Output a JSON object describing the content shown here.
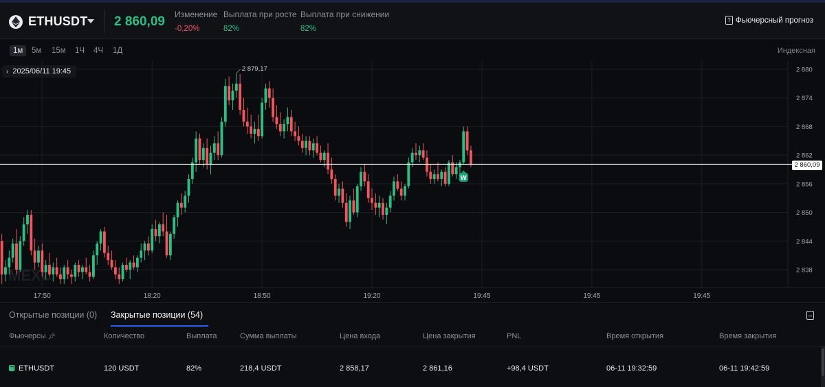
{
  "header": {
    "symbol": "ETHUSDT",
    "price": "2 860,09",
    "change_label": "Изменение",
    "change_value": "-0,20%",
    "payout_up_label": "Выплата при росте",
    "payout_up_value": "82%",
    "payout_down_label": "Выплата при снижении",
    "payout_down_value": "82%",
    "forecast_label": "Фьючерсный прогноз"
  },
  "timeframes": [
    "1м",
    "5м",
    "15м",
    "1Ч",
    "4Ч",
    "1Д"
  ],
  "active_timeframe": "1м",
  "indexed_label": "Индексная",
  "chart": {
    "date_label": "2025/06/11 19:45",
    "high_label": "2 879,17",
    "current_price_label": "2 860,09",
    "marker_label": "W",
    "watermark": "MEXC",
    "colors": {
      "up": "#2ebd85",
      "down": "#f0565d",
      "bg": "#0b0c0f",
      "grid": "#1c1e24"
    }
  },
  "chart_data": {
    "type": "candlestick",
    "ylim": [
      2834,
      2882
    ],
    "y_ticks": [
      2880,
      2874,
      2868,
      2862,
      2856,
      2850,
      2844,
      2838
    ],
    "y_tick_labels": [
      "2 880",
      "2 874",
      "2 868",
      "2 862",
      "2 856",
      "2 850",
      "2 844",
      "2 838"
    ],
    "x_ticks": [
      {
        "label": "17:50",
        "i": 11
      },
      {
        "label": "18:20",
        "i": 41
      },
      {
        "label": "18:50",
        "i": 71
      },
      {
        "label": "19:20",
        "i": 101
      },
      {
        "label": "19:45",
        "i": 131
      },
      {
        "label": "19:45",
        "i": 161
      },
      {
        "label": "19:45",
        "i": 191
      }
    ],
    "x_slots": 215,
    "current_price": 2860.09,
    "candles": [
      {
        "o": 2844.0,
        "h": 2845.5,
        "l": 2835.0,
        "c": 2837.0
      },
      {
        "o": 2837.0,
        "h": 2840.0,
        "l": 2835.5,
        "c": 2838.5
      },
      {
        "o": 2838.5,
        "h": 2842.0,
        "l": 2837.0,
        "c": 2840.5
      },
      {
        "o": 2840.5,
        "h": 2844.5,
        "l": 2839.5,
        "c": 2843.5
      },
      {
        "o": 2843.5,
        "h": 2846.5,
        "l": 2837.0,
        "c": 2838.0
      },
      {
        "o": 2838.0,
        "h": 2845.0,
        "l": 2837.5,
        "c": 2844.0
      },
      {
        "o": 2844.0,
        "h": 2849.0,
        "l": 2843.0,
        "c": 2847.5
      },
      {
        "o": 2847.5,
        "h": 2850.5,
        "l": 2845.5,
        "c": 2849.5
      },
      {
        "o": 2849.5,
        "h": 2850.5,
        "l": 2841.0,
        "c": 2842.0
      },
      {
        "o": 2842.0,
        "h": 2844.5,
        "l": 2838.0,
        "c": 2839.5
      },
      {
        "o": 2839.5,
        "h": 2843.0,
        "l": 2838.5,
        "c": 2842.0
      },
      {
        "o": 2842.0,
        "h": 2843.5,
        "l": 2836.5,
        "c": 2837.5
      },
      {
        "o": 2837.5,
        "h": 2840.0,
        "l": 2836.0,
        "c": 2839.0
      },
      {
        "o": 2839.0,
        "h": 2841.5,
        "l": 2836.5,
        "c": 2837.0
      },
      {
        "o": 2837.0,
        "h": 2839.5,
        "l": 2835.5,
        "c": 2838.5
      },
      {
        "o": 2838.5,
        "h": 2840.5,
        "l": 2836.5,
        "c": 2837.0
      },
      {
        "o": 2837.0,
        "h": 2838.5,
        "l": 2835.0,
        "c": 2836.0
      },
      {
        "o": 2836.0,
        "h": 2839.0,
        "l": 2835.0,
        "c": 2838.5
      },
      {
        "o": 2838.5,
        "h": 2840.0,
        "l": 2836.0,
        "c": 2837.0
      },
      {
        "o": 2837.0,
        "h": 2838.0,
        "l": 2835.0,
        "c": 2836.5
      },
      {
        "o": 2836.5,
        "h": 2839.5,
        "l": 2835.5,
        "c": 2839.0
      },
      {
        "o": 2839.0,
        "h": 2840.0,
        "l": 2836.5,
        "c": 2837.5
      },
      {
        "o": 2837.5,
        "h": 2839.0,
        "l": 2836.0,
        "c": 2838.5
      },
      {
        "o": 2838.5,
        "h": 2840.5,
        "l": 2837.0,
        "c": 2837.5
      },
      {
        "o": 2837.5,
        "h": 2839.0,
        "l": 2835.5,
        "c": 2836.5
      },
      {
        "o": 2836.5,
        "h": 2842.0,
        "l": 2836.0,
        "c": 2841.0
      },
      {
        "o": 2841.0,
        "h": 2844.0,
        "l": 2839.0,
        "c": 2843.5
      },
      {
        "o": 2843.5,
        "h": 2846.5,
        "l": 2842.0,
        "c": 2846.0
      },
      {
        "o": 2846.0,
        "h": 2847.0,
        "l": 2840.5,
        "c": 2841.5
      },
      {
        "o": 2841.5,
        "h": 2843.0,
        "l": 2839.0,
        "c": 2840.0
      },
      {
        "o": 2840.0,
        "h": 2842.0,
        "l": 2838.0,
        "c": 2838.5
      },
      {
        "o": 2838.5,
        "h": 2840.0,
        "l": 2836.0,
        "c": 2837.0
      },
      {
        "o": 2837.0,
        "h": 2838.5,
        "l": 2835.0,
        "c": 2836.0
      },
      {
        "o": 2836.0,
        "h": 2839.5,
        "l": 2835.5,
        "c": 2839.0
      },
      {
        "o": 2839.0,
        "h": 2840.5,
        "l": 2837.5,
        "c": 2838.0
      },
      {
        "o": 2838.0,
        "h": 2840.0,
        "l": 2836.0,
        "c": 2839.5
      },
      {
        "o": 2839.5,
        "h": 2841.0,
        "l": 2838.0,
        "c": 2838.5
      },
      {
        "o": 2838.5,
        "h": 2841.0,
        "l": 2837.5,
        "c": 2840.5
      },
      {
        "o": 2840.5,
        "h": 2843.5,
        "l": 2839.5,
        "c": 2842.0
      },
      {
        "o": 2842.0,
        "h": 2844.0,
        "l": 2840.0,
        "c": 2843.5
      },
      {
        "o": 2843.5,
        "h": 2845.0,
        "l": 2841.0,
        "c": 2842.0
      },
      {
        "o": 2842.0,
        "h": 2847.5,
        "l": 2841.5,
        "c": 2846.5
      },
      {
        "o": 2846.5,
        "h": 2848.5,
        "l": 2844.0,
        "c": 2845.0
      },
      {
        "o": 2845.0,
        "h": 2848.0,
        "l": 2843.5,
        "c": 2847.5
      },
      {
        "o": 2847.5,
        "h": 2850.0,
        "l": 2845.0,
        "c": 2846.0
      },
      {
        "o": 2846.0,
        "h": 2849.5,
        "l": 2840.5,
        "c": 2841.0
      },
      {
        "o": 2841.0,
        "h": 2846.0,
        "l": 2840.0,
        "c": 2845.5
      },
      {
        "o": 2845.5,
        "h": 2849.5,
        "l": 2844.5,
        "c": 2849.0
      },
      {
        "o": 2849.0,
        "h": 2852.5,
        "l": 2847.0,
        "c": 2852.0
      },
      {
        "o": 2852.0,
        "h": 2854.0,
        "l": 2849.5,
        "c": 2851.0
      },
      {
        "o": 2851.0,
        "h": 2854.5,
        "l": 2850.0,
        "c": 2853.5
      },
      {
        "o": 2853.5,
        "h": 2858.0,
        "l": 2852.0,
        "c": 2857.0
      },
      {
        "o": 2857.0,
        "h": 2861.5,
        "l": 2856.0,
        "c": 2860.5
      },
      {
        "o": 2860.5,
        "h": 2867.0,
        "l": 2858.5,
        "c": 2865.5
      },
      {
        "o": 2865.5,
        "h": 2866.5,
        "l": 2860.0,
        "c": 2861.0
      },
      {
        "o": 2861.0,
        "h": 2864.5,
        "l": 2859.5,
        "c": 2863.5
      },
      {
        "o": 2863.5,
        "h": 2865.5,
        "l": 2859.0,
        "c": 2860.0
      },
      {
        "o": 2860.0,
        "h": 2864.0,
        "l": 2858.0,
        "c": 2862.5
      },
      {
        "o": 2862.5,
        "h": 2866.0,
        "l": 2861.0,
        "c": 2864.5
      },
      {
        "o": 2864.5,
        "h": 2867.0,
        "l": 2861.0,
        "c": 2862.0
      },
      {
        "o": 2862.0,
        "h": 2870.0,
        "l": 2861.5,
        "c": 2869.0
      },
      {
        "o": 2869.0,
        "h": 2878.0,
        "l": 2868.0,
        "c": 2876.5
      },
      {
        "o": 2876.5,
        "h": 2878.5,
        "l": 2872.5,
        "c": 2873.5
      },
      {
        "o": 2873.5,
        "h": 2877.0,
        "l": 2871.5,
        "c": 2875.5
      },
      {
        "o": 2875.5,
        "h": 2879.17,
        "l": 2874.0,
        "c": 2877.0
      },
      {
        "o": 2877.0,
        "h": 2879.0,
        "l": 2870.5,
        "c": 2871.5
      },
      {
        "o": 2871.5,
        "h": 2874.0,
        "l": 2868.0,
        "c": 2869.0
      },
      {
        "o": 2869.0,
        "h": 2872.0,
        "l": 2866.5,
        "c": 2868.0
      },
      {
        "o": 2868.0,
        "h": 2870.5,
        "l": 2865.5,
        "c": 2866.5
      },
      {
        "o": 2866.5,
        "h": 2869.0,
        "l": 2864.5,
        "c": 2867.5
      },
      {
        "o": 2867.5,
        "h": 2870.5,
        "l": 2865.0,
        "c": 2866.0
      },
      {
        "o": 2866.0,
        "h": 2874.0,
        "l": 2865.5,
        "c": 2873.0
      },
      {
        "o": 2873.0,
        "h": 2877.0,
        "l": 2871.5,
        "c": 2876.0
      },
      {
        "o": 2876.0,
        "h": 2877.5,
        "l": 2872.0,
        "c": 2874.0
      },
      {
        "o": 2874.0,
        "h": 2876.0,
        "l": 2869.0,
        "c": 2870.0
      },
      {
        "o": 2870.0,
        "h": 2872.5,
        "l": 2867.5,
        "c": 2868.5
      },
      {
        "o": 2868.5,
        "h": 2871.0,
        "l": 2866.0,
        "c": 2867.0
      },
      {
        "o": 2867.0,
        "h": 2869.5,
        "l": 2865.5,
        "c": 2868.5
      },
      {
        "o": 2868.5,
        "h": 2872.0,
        "l": 2867.0,
        "c": 2870.0
      },
      {
        "o": 2870.0,
        "h": 2871.5,
        "l": 2866.0,
        "c": 2867.0
      },
      {
        "o": 2867.0,
        "h": 2869.0,
        "l": 2865.0,
        "c": 2866.0
      },
      {
        "o": 2866.0,
        "h": 2868.0,
        "l": 2864.0,
        "c": 2865.0
      },
      {
        "o": 2865.0,
        "h": 2866.5,
        "l": 2862.5,
        "c": 2863.5
      },
      {
        "o": 2863.5,
        "h": 2866.0,
        "l": 2862.0,
        "c": 2865.0
      },
      {
        "o": 2865.0,
        "h": 2866.0,
        "l": 2862.0,
        "c": 2863.0
      },
      {
        "o": 2863.0,
        "h": 2865.5,
        "l": 2861.5,
        "c": 2864.5
      },
      {
        "o": 2864.5,
        "h": 2866.0,
        "l": 2862.0,
        "c": 2862.5
      },
      {
        "o": 2862.5,
        "h": 2864.0,
        "l": 2860.5,
        "c": 2861.0
      },
      {
        "o": 2861.0,
        "h": 2863.0,
        "l": 2859.5,
        "c": 2862.5
      },
      {
        "o": 2862.5,
        "h": 2864.5,
        "l": 2858.0,
        "c": 2859.0
      },
      {
        "o": 2859.0,
        "h": 2861.5,
        "l": 2856.0,
        "c": 2857.0
      },
      {
        "o": 2857.0,
        "h": 2858.0,
        "l": 2852.5,
        "c": 2853.5
      },
      {
        "o": 2853.5,
        "h": 2856.0,
        "l": 2852.0,
        "c": 2855.0
      },
      {
        "o": 2855.0,
        "h": 2856.5,
        "l": 2851.0,
        "c": 2852.0
      },
      {
        "o": 2852.0,
        "h": 2854.0,
        "l": 2847.0,
        "c": 2848.0
      },
      {
        "o": 2848.0,
        "h": 2853.5,
        "l": 2846.5,
        "c": 2852.5
      },
      {
        "o": 2852.5,
        "h": 2855.0,
        "l": 2849.5,
        "c": 2850.0
      },
      {
        "o": 2850.0,
        "h": 2856.0,
        "l": 2849.0,
        "c": 2855.5
      },
      {
        "o": 2855.5,
        "h": 2859.5,
        "l": 2854.5,
        "c": 2858.5
      },
      {
        "o": 2858.5,
        "h": 2860.0,
        "l": 2855.5,
        "c": 2856.5
      },
      {
        "o": 2856.5,
        "h": 2858.0,
        "l": 2852.0,
        "c": 2853.0
      },
      {
        "o": 2853.0,
        "h": 2855.0,
        "l": 2850.5,
        "c": 2852.0
      },
      {
        "o": 2852.0,
        "h": 2854.0,
        "l": 2849.5,
        "c": 2851.0
      },
      {
        "o": 2851.0,
        "h": 2853.5,
        "l": 2849.0,
        "c": 2852.0
      },
      {
        "o": 2852.0,
        "h": 2853.0,
        "l": 2848.5,
        "c": 2849.5
      },
      {
        "o": 2849.5,
        "h": 2852.0,
        "l": 2847.5,
        "c": 2851.0
      },
      {
        "o": 2851.0,
        "h": 2854.5,
        "l": 2850.0,
        "c": 2853.5
      },
      {
        "o": 2853.5,
        "h": 2857.5,
        "l": 2852.5,
        "c": 2856.5
      },
      {
        "o": 2856.5,
        "h": 2858.0,
        "l": 2854.5,
        "c": 2855.0
      },
      {
        "o": 2855.0,
        "h": 2856.5,
        "l": 2852.5,
        "c": 2853.5
      },
      {
        "o": 2853.5,
        "h": 2856.0,
        "l": 2852.5,
        "c": 2855.5
      },
      {
        "o": 2855.5,
        "h": 2861.5,
        "l": 2855.0,
        "c": 2860.5
      },
      {
        "o": 2860.5,
        "h": 2863.5,
        "l": 2859.5,
        "c": 2862.5
      },
      {
        "o": 2862.5,
        "h": 2864.5,
        "l": 2861.0,
        "c": 2862.0
      },
      {
        "o": 2862.0,
        "h": 2864.0,
        "l": 2860.5,
        "c": 2863.0
      },
      {
        "o": 2863.0,
        "h": 2864.5,
        "l": 2861.0,
        "c": 2861.5
      },
      {
        "o": 2861.5,
        "h": 2863.0,
        "l": 2857.5,
        "c": 2858.5
      },
      {
        "o": 2858.5,
        "h": 2860.0,
        "l": 2856.0,
        "c": 2857.0
      },
      {
        "o": 2857.0,
        "h": 2859.0,
        "l": 2856.0,
        "c": 2858.0
      },
      {
        "o": 2858.0,
        "h": 2860.5,
        "l": 2856.5,
        "c": 2857.0
      },
      {
        "o": 2857.0,
        "h": 2859.0,
        "l": 2855.5,
        "c": 2858.5
      },
      {
        "o": 2858.5,
        "h": 2859.5,
        "l": 2855.5,
        "c": 2856.0
      },
      {
        "o": 2856.0,
        "h": 2861.0,
        "l": 2855.5,
        "c": 2860.5
      },
      {
        "o": 2860.5,
        "h": 2862.0,
        "l": 2857.5,
        "c": 2858.0
      },
      {
        "o": 2858.0,
        "h": 2860.5,
        "l": 2857.0,
        "c": 2859.5
      },
      {
        "o": 2859.5,
        "h": 2861.0,
        "l": 2858.0,
        "c": 2860.5
      },
      {
        "o": 2860.5,
        "h": 2868.0,
        "l": 2860.0,
        "c": 2867.0
      },
      {
        "o": 2867.0,
        "h": 2868.0,
        "l": 2862.0,
        "c": 2863.0
      },
      {
        "o": 2863.0,
        "h": 2864.0,
        "l": 2859.5,
        "c": 2860.09
      }
    ]
  },
  "positions": {
    "tab_open": "Открытые позиции (0)",
    "tab_closed": "Закрытые позиции (54)",
    "columns": [
      "Фьючерсы",
      "Количество",
      "Выплата",
      "Сумма выплаты",
      "Цена входа",
      "Цена закрытия",
      "PNL",
      "Время открытия",
      "Время закрытия"
    ],
    "rows": [
      {
        "symbol": "ETHUSDT",
        "quantity": "120 USDT",
        "payout": "82%",
        "payout_sum": "218,4 USDT",
        "entry": "2 858,17",
        "close": "2 861,16",
        "pnl": "+98,4 USDT",
        "open_time": "06-11 19:32:59",
        "close_time": "06-11 19:42:59"
      }
    ]
  }
}
